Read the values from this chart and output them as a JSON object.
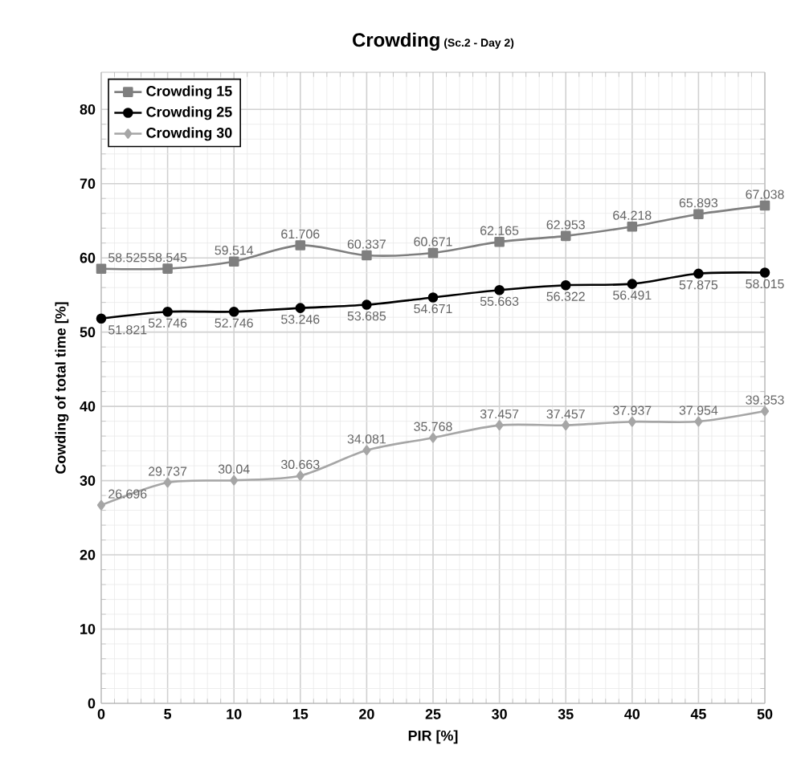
{
  "chart_data": {
    "type": "line",
    "title": "Crowding",
    "subtitle": "(Sc.2 - Day 2)",
    "xlabel": "PIR [%]",
    "ylabel": "Cowding of total time [%]",
    "x": [
      0,
      5,
      10,
      15,
      20,
      25,
      30,
      35,
      40,
      45,
      50
    ],
    "series": [
      {
        "name": "Crowding 15",
        "color": "#7f7f7f",
        "marker": "square",
        "values": [
          58.525,
          58.545,
          59.514,
          61.706,
          60.337,
          60.671,
          62.165,
          62.953,
          64.218,
          65.893,
          67.038
        ]
      },
      {
        "name": "Crowding 25",
        "color": "#000000",
        "marker": "circle",
        "values": [
          51.821,
          52.746,
          52.746,
          53.246,
          53.685,
          54.671,
          55.663,
          56.322,
          56.491,
          57.875,
          58.015
        ]
      },
      {
        "name": "Crowding 30",
        "color": "#a6a6a6",
        "marker": "diamond",
        "values": [
          26.696,
          29.737,
          30.04,
          30.663,
          34.081,
          35.768,
          37.457,
          37.457,
          37.937,
          37.954,
          39.353
        ]
      }
    ],
    "xlim": [
      0,
      50
    ],
    "xticks": [
      0,
      5,
      10,
      15,
      20,
      25,
      30,
      35,
      40,
      45,
      50
    ],
    "ylim": [
      0,
      85
    ],
    "yticks": [
      0,
      10,
      20,
      30,
      40,
      50,
      60,
      70,
      80
    ],
    "grid": true,
    "legend": "top left",
    "data_labels": true,
    "line_style": "solid"
  }
}
